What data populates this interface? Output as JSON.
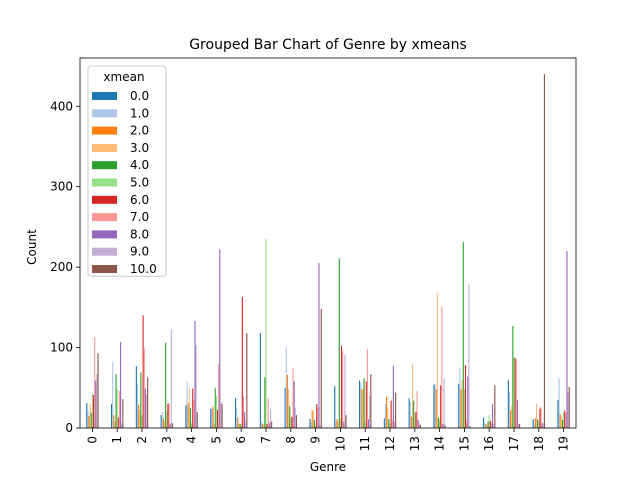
{
  "chart_data": {
    "type": "bar",
    "title": "Grouped Bar Chart of Genre by xmeans",
    "xlabel": "Genre",
    "ylabel": "Count",
    "ylim": [
      0,
      460
    ],
    "yticks": [
      0,
      100,
      200,
      300,
      400
    ],
    "grid": false,
    "legend_title": "xmean",
    "legend_position": "upper-left",
    "categories": [
      "0",
      "1",
      "2",
      "3",
      "4",
      "5",
      "6",
      "7",
      "8",
      "9",
      "10",
      "11",
      "12",
      "13",
      "14",
      "15",
      "16",
      "17",
      "18",
      "19"
    ],
    "series": [
      {
        "name": "0.0",
        "color": "#1f77b4",
        "values": [
          31,
          30,
          77,
          16,
          28,
          24,
          37,
          118,
          50,
          11,
          52,
          59,
          12,
          37,
          54,
          55,
          13,
          60,
          11,
          35
        ]
      },
      {
        "name": "1.0",
        "color": "#aec7e8",
        "values": [
          20,
          82,
          54,
          20,
          58,
          24,
          25,
          7,
          100,
          7,
          8,
          56,
          30,
          32,
          54,
          75,
          6,
          45,
          5,
          62
        ]
      },
      {
        "name": "2.0",
        "color": "#ff7f0e",
        "values": [
          15,
          16,
          29,
          12,
          31,
          27,
          13,
          5,
          66,
          22,
          11,
          48,
          39,
          14,
          48,
          48,
          5,
          22,
          12,
          17
        ]
      },
      {
        "name": "3.0",
        "color": "#ffbb78",
        "values": [
          30,
          8,
          22,
          9,
          50,
          5,
          6,
          4,
          48,
          20,
          8,
          49,
          25,
          80,
          168,
          60,
          3,
          28,
          30,
          14
        ]
      },
      {
        "name": "4.0",
        "color": "#2ca02c",
        "values": [
          19,
          67,
          69,
          106,
          25,
          50,
          5,
          63,
          27,
          10,
          211,
          62,
          11,
          34,
          13,
          231,
          8,
          127,
          11,
          10
        ]
      },
      {
        "name": "5.0",
        "color": "#98df8a",
        "values": [
          43,
          48,
          16,
          21,
          6,
          40,
          5,
          235,
          13,
          4,
          12,
          8,
          5,
          17,
          10,
          48,
          16,
          88,
          9,
          20
        ]
      },
      {
        "name": "6.0",
        "color": "#d62728",
        "values": [
          41,
          13,
          140,
          30,
          49,
          22,
          163,
          5,
          14,
          30,
          102,
          58,
          34,
          20,
          53,
          78,
          9,
          87,
          24,
          22
        ]
      },
      {
        "name": "7.0",
        "color": "#ff9896",
        "values": [
          113,
          46,
          99,
          31,
          35,
          80,
          40,
          37,
          74,
          25,
          96,
          98,
          10,
          46,
          151,
          9,
          6,
          86,
          26,
          19
        ]
      },
      {
        "name": "8.0",
        "color": "#9467bd",
        "values": [
          59,
          107,
          49,
          5,
          133,
          222,
          20,
          6,
          58,
          205,
          8,
          11,
          77,
          10,
          5,
          64,
          30,
          35,
          6,
          220
        ]
      },
      {
        "name": "9.0",
        "color": "#c5b0d5",
        "values": [
          67,
          6,
          42,
          123,
          103,
          33,
          9,
          24,
          25,
          4,
          91,
          40,
          8,
          6,
          62,
          179,
          5,
          5,
          6,
          44
        ]
      },
      {
        "name": "10.0",
        "color": "#8c564b",
        "values": [
          93,
          36,
          63,
          6,
          20,
          30,
          118,
          8,
          16,
          148,
          16,
          67,
          44,
          4,
          3,
          2,
          53,
          5,
          440,
          51
        ]
      }
    ]
  }
}
